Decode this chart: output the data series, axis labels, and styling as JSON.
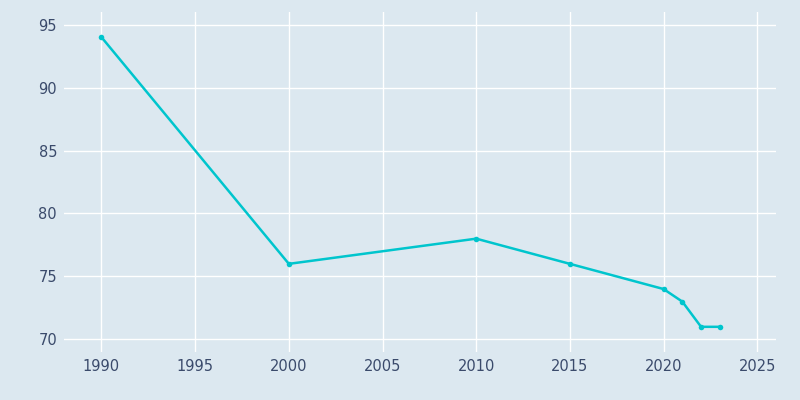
{
  "years": [
    1990,
    2000,
    2010,
    2015,
    2020,
    2021,
    2022,
    2023
  ],
  "population": [
    94,
    76,
    78,
    76,
    74,
    73,
    71,
    71
  ],
  "line_color": "#00c5cd",
  "bg_color": "#dce8f0",
  "grid_color": "#ffffff",
  "xlim": [
    1988,
    2026
  ],
  "ylim": [
    69,
    96
  ],
  "yticks": [
    70,
    75,
    80,
    85,
    90,
    95
  ],
  "xticks": [
    1990,
    1995,
    2000,
    2005,
    2010,
    2015,
    2020,
    2025
  ],
  "marker_color": "#00c5cd",
  "marker_size": 4,
  "tick_label_color": "#3a4a6b",
  "tick_label_size": 10.5
}
